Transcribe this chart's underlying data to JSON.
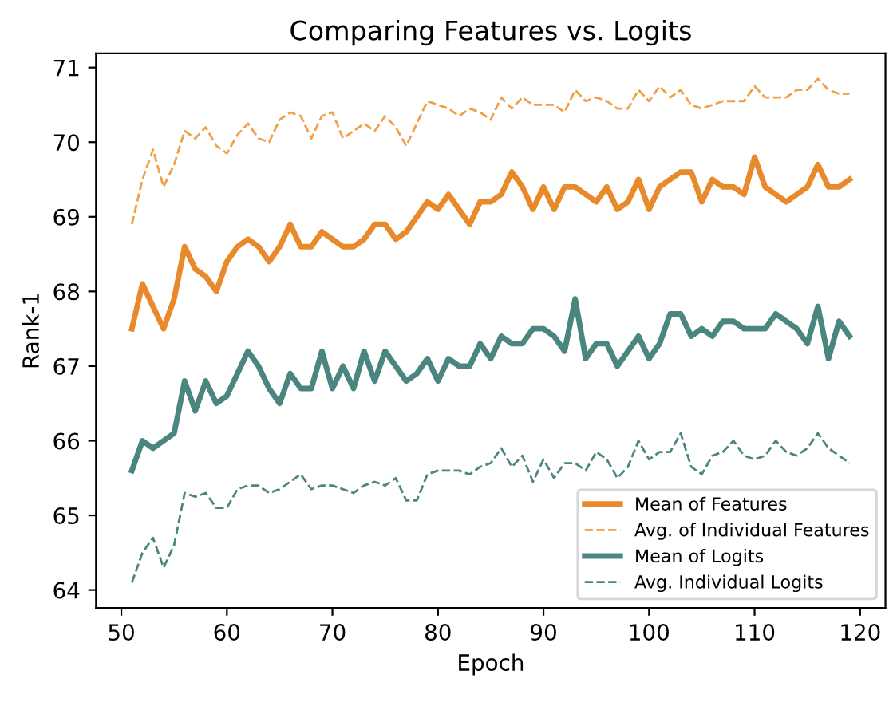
{
  "chart_data": {
    "type": "line",
    "title": "Comparing Features vs. Logits",
    "xlabel": "Epoch",
    "ylabel": "Rank-1",
    "x": [
      51,
      52,
      53,
      54,
      55,
      56,
      57,
      58,
      59,
      60,
      61,
      62,
      63,
      64,
      65,
      66,
      67,
      68,
      69,
      70,
      71,
      72,
      73,
      74,
      75,
      76,
      77,
      78,
      79,
      80,
      81,
      82,
      83,
      84,
      85,
      86,
      87,
      88,
      89,
      90,
      91,
      92,
      93,
      94,
      95,
      96,
      97,
      98,
      99,
      100,
      101,
      102,
      103,
      104,
      105,
      106,
      107,
      108,
      109,
      110,
      111,
      112,
      113,
      114,
      115,
      116,
      117,
      118,
      119
    ],
    "xlim": [
      47.6,
      122.4
    ],
    "xticks": [
      50,
      60,
      70,
      80,
      90,
      100,
      110,
      120
    ],
    "ylim": [
      63.76,
      71.19
    ],
    "yticks": [
      64,
      65,
      66,
      67,
      68,
      69,
      70,
      71
    ],
    "legend": "bottom right",
    "grid": false,
    "series": [
      {
        "name": "Mean of Features",
        "color": "#e8892b",
        "line_style": "solid",
        "values": [
          67.5,
          68.1,
          67.8,
          67.5,
          67.9,
          68.6,
          68.3,
          68.2,
          68.0,
          68.4,
          68.6,
          68.7,
          68.6,
          68.4,
          68.6,
          68.9,
          68.6,
          68.6,
          68.8,
          68.7,
          68.6,
          68.6,
          68.7,
          68.9,
          68.9,
          68.7,
          68.8,
          69.0,
          69.2,
          69.1,
          69.3,
          69.1,
          68.9,
          69.2,
          69.2,
          69.3,
          69.6,
          69.4,
          69.1,
          69.4,
          69.1,
          69.4,
          69.4,
          69.3,
          69.2,
          69.4,
          69.1,
          69.2,
          69.5,
          69.1,
          69.4,
          69.5,
          69.6,
          69.6,
          69.2,
          69.5,
          69.4,
          69.4,
          69.3,
          69.8,
          69.4,
          69.3,
          69.2,
          69.3,
          69.4,
          69.7,
          69.4,
          69.4,
          69.5
        ]
      },
      {
        "name": "Avg. of Individual Features",
        "color": "#f0a048",
        "line_style": "dashed",
        "values": [
          68.9,
          69.5,
          69.9,
          69.4,
          69.7,
          70.15,
          70.05,
          70.2,
          69.95,
          69.85,
          70.1,
          70.25,
          70.05,
          70.0,
          70.3,
          70.4,
          70.35,
          70.05,
          70.35,
          70.4,
          70.05,
          70.15,
          70.25,
          70.15,
          70.35,
          70.2,
          69.95,
          70.25,
          70.55,
          70.5,
          70.45,
          70.35,
          70.45,
          70.4,
          70.3,
          70.6,
          70.45,
          70.6,
          70.5,
          70.5,
          70.5,
          70.4,
          70.7,
          70.55,
          70.6,
          70.55,
          70.45,
          70.45,
          70.7,
          70.55,
          70.75,
          70.6,
          70.7,
          70.5,
          70.45,
          70.5,
          70.55,
          70.55,
          70.55,
          70.75,
          70.6,
          70.6,
          70.6,
          70.7,
          70.7,
          70.85,
          70.7,
          70.65,
          70.65
        ]
      },
      {
        "name": "Mean of Logits",
        "color": "#4a8580",
        "line_style": "solid",
        "values": [
          65.6,
          66.0,
          65.9,
          66.0,
          66.1,
          66.8,
          66.4,
          66.8,
          66.5,
          66.6,
          66.9,
          67.2,
          67.0,
          66.7,
          66.5,
          66.9,
          66.7,
          66.7,
          67.2,
          66.7,
          67.0,
          66.7,
          67.2,
          66.8,
          67.2,
          67.0,
          66.8,
          66.9,
          67.1,
          66.8,
          67.1,
          67.0,
          67.0,
          67.3,
          67.1,
          67.4,
          67.3,
          67.3,
          67.5,
          67.5,
          67.4,
          67.2,
          67.9,
          67.1,
          67.3,
          67.3,
          67.0,
          67.2,
          67.4,
          67.1,
          67.3,
          67.7,
          67.7,
          67.4,
          67.5,
          67.4,
          67.6,
          67.6,
          67.5,
          67.5,
          67.5,
          67.7,
          67.6,
          67.5,
          67.3,
          67.8,
          67.1,
          67.6,
          67.4
        ]
      },
      {
        "name": "Avg. Individual Logits",
        "color": "#4a8580",
        "line_style": "dashed",
        "values": [
          64.1,
          64.5,
          64.7,
          64.3,
          64.6,
          65.3,
          65.25,
          65.3,
          65.1,
          65.1,
          65.35,
          65.4,
          65.4,
          65.3,
          65.35,
          65.45,
          65.55,
          65.35,
          65.4,
          65.4,
          65.35,
          65.3,
          65.4,
          65.45,
          65.4,
          65.5,
          65.2,
          65.2,
          65.55,
          65.6,
          65.6,
          65.6,
          65.55,
          65.65,
          65.7,
          65.9,
          65.65,
          65.8,
          65.45,
          65.75,
          65.5,
          65.7,
          65.7,
          65.6,
          65.85,
          65.75,
          65.5,
          65.65,
          66.0,
          65.75,
          65.85,
          65.85,
          66.1,
          65.65,
          65.55,
          65.8,
          65.85,
          66.0,
          65.8,
          65.75,
          65.8,
          66.0,
          65.85,
          65.8,
          65.9,
          66.1,
          65.9,
          65.8,
          65.7
        ]
      }
    ]
  }
}
